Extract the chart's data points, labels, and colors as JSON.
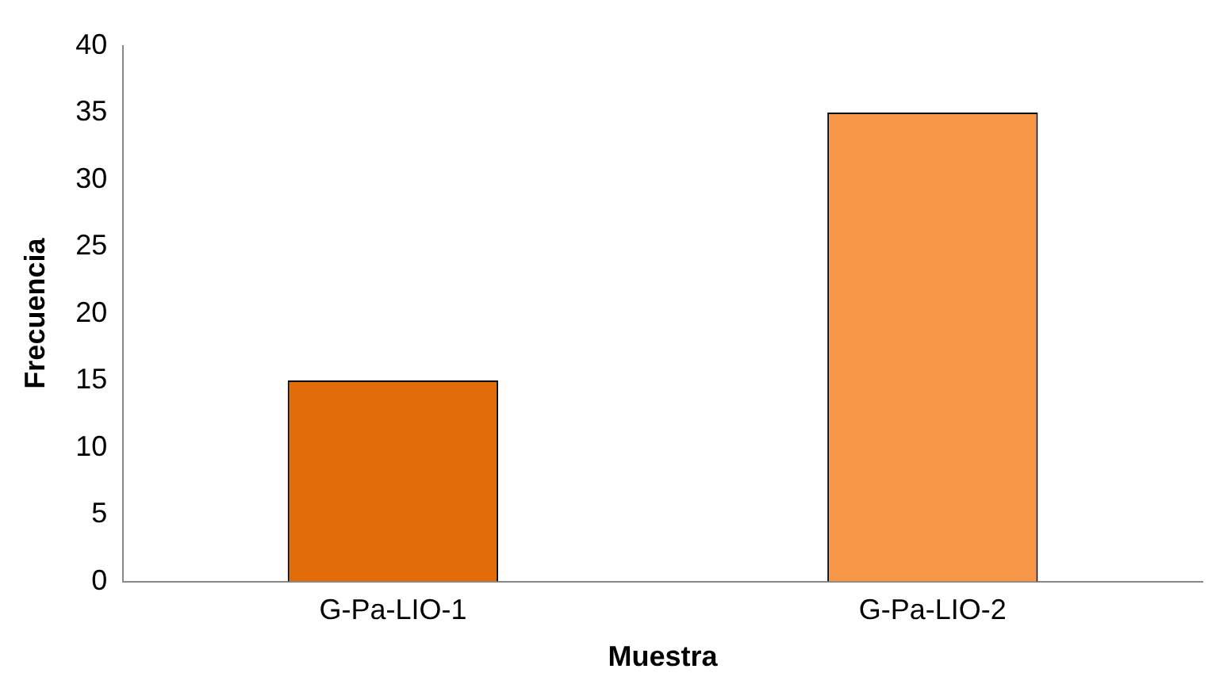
{
  "chart_data": {
    "type": "bar",
    "xlabel": "Muestra",
    "ylabel": "Frecuencia",
    "categories": [
      "G-Pa-LIO-1",
      "G-Pa-LIO-2"
    ],
    "values": [
      15,
      35
    ],
    "colors": [
      "#e36c0a",
      "#f79646"
    ],
    "ylim": [
      0,
      40
    ],
    "yticks": [
      0,
      5,
      10,
      15,
      20,
      25,
      30,
      35,
      40
    ],
    "grid": false,
    "legend": false
  }
}
